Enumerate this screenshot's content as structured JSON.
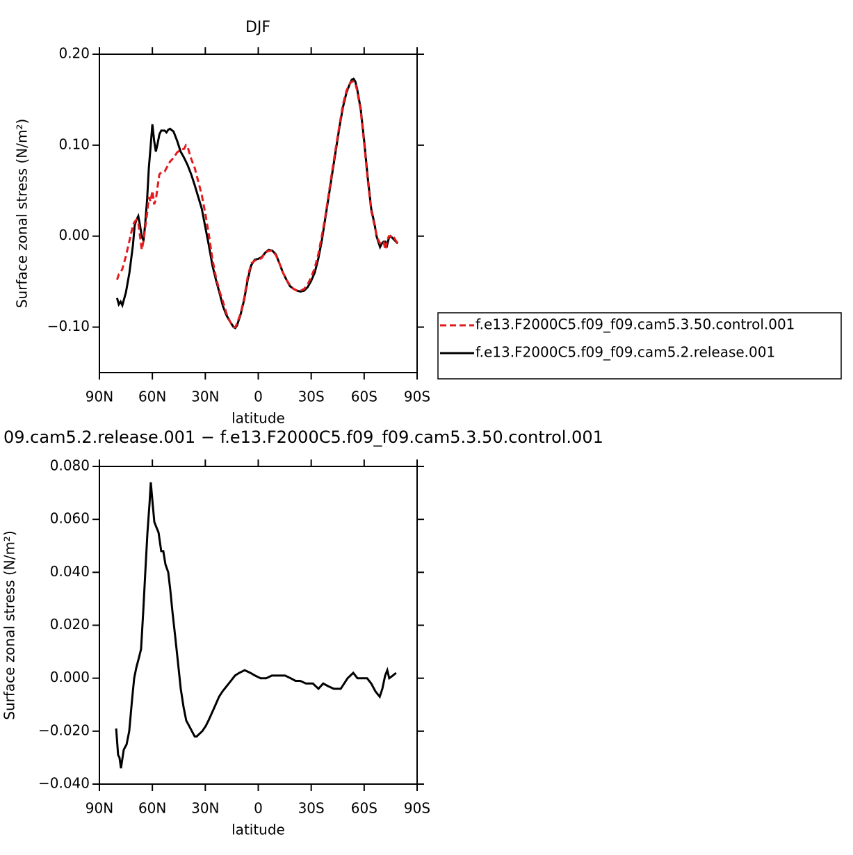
{
  "chart_data": [
    {
      "type": "line",
      "title": "DJF",
      "xlabel": "latitude",
      "ylabel": "Surface zonal stress (N/m²)",
      "xlim": [
        90,
        -90
      ],
      "xticks": [
        {
          "value": 90,
          "label": "90N"
        },
        {
          "value": 60,
          "label": "60N"
        },
        {
          "value": 30,
          "label": "30N"
        },
        0,
        {
          "value": -30,
          "label": "30S"
        },
        {
          "value": -60,
          "label": "60S"
        },
        {
          "value": -90,
          "label": "90S"
        }
      ],
      "ylim": [
        -0.15,
        0.2
      ],
      "yticks": [
        {
          "value": 0.2,
          "label": "0.20"
        },
        {
          "value": 0.1,
          "label": "0.10"
        },
        {
          "value": 0,
          "label": "0.00"
        },
        {
          "value": -0.1,
          "label": "−0.10"
        }
      ],
      "legend": "right",
      "x": [
        80,
        79,
        78,
        77,
        75,
        73,
        71,
        70,
        69,
        68,
        67,
        66,
        65,
        64,
        63,
        62,
        61,
        60,
        59,
        58,
        57,
        56,
        55,
        53,
        52,
        51,
        50,
        48,
        46,
        44,
        42,
        41,
        40,
        38,
        36,
        34,
        32,
        30,
        28,
        26,
        24,
        22,
        20,
        18,
        16,
        14,
        13,
        12,
        10,
        8,
        6,
        4,
        2,
        0,
        -2,
        -4,
        -6,
        -8,
        -10,
        -12,
        -14,
        -16,
        -18,
        -20,
        -22,
        -24,
        -26,
        -28,
        -30,
        -32,
        -34,
        -36,
        -38,
        -40,
        -42,
        -44,
        -46,
        -48,
        -50,
        -52,
        -53,
        -54,
        -55,
        -56,
        -58,
        -60,
        -62,
        -64,
        -66,
        -67,
        -68,
        -69,
        -70,
        -71,
        -72,
        -73,
        -74,
        -75,
        -76,
        -77,
        -78,
        -79
      ],
      "series": [
        {
          "name": "f.e13.F2000C5.f09_f09.cam5.3.50.control.001",
          "color": "#e41a1c",
          "line_style": "dashed",
          "values": [
            -0.048,
            -0.042,
            -0.04,
            -0.036,
            -0.022,
            -0.005,
            0.012,
            0.016,
            0.018,
            0.015,
            0.0,
            -0.015,
            -0.005,
            0.01,
            0.025,
            0.043,
            0.038,
            0.05,
            0.035,
            0.04,
            0.055,
            0.068,
            0.07,
            0.071,
            0.075,
            0.078,
            0.082,
            0.086,
            0.092,
            0.095,
            0.096,
            0.1,
            0.098,
            0.085,
            0.075,
            0.06,
            0.045,
            0.025,
            0.002,
            -0.025,
            -0.045,
            -0.06,
            -0.072,
            -0.085,
            -0.094,
            -0.1,
            -0.1,
            -0.096,
            -0.085,
            -0.068,
            -0.045,
            -0.03,
            -0.027,
            -0.026,
            -0.024,
            -0.018,
            -0.016,
            -0.016,
            -0.021,
            -0.03,
            -0.04,
            -0.048,
            -0.054,
            -0.058,
            -0.06,
            -0.06,
            -0.058,
            -0.053,
            -0.045,
            -0.035,
            -0.02,
            0.0,
            0.022,
            0.048,
            0.073,
            0.098,
            0.122,
            0.145,
            0.16,
            0.168,
            0.17,
            0.17,
            0.168,
            0.16,
            0.138,
            0.102,
            0.062,
            0.028,
            0.01,
            0.002,
            -0.004,
            -0.008,
            -0.006,
            -0.006,
            -0.015,
            -0.005,
            0.0,
            0.0,
            -0.003,
            -0.002,
            -0.005,
            -0.008
          ]
        },
        {
          "name": "f.e13.F2000C5.f09_f09.cam5.2.release.001",
          "color": "#000000",
          "line_style": "solid",
          "values": [
            -0.068,
            -0.075,
            -0.072,
            -0.076,
            -0.062,
            -0.04,
            -0.01,
            0.012,
            0.018,
            0.022,
            0.012,
            0.0,
            -0.005,
            0.015,
            0.04,
            0.075,
            0.098,
            0.123,
            0.105,
            0.093,
            0.102,
            0.112,
            0.116,
            0.116,
            0.114,
            0.117,
            0.118,
            0.115,
            0.105,
            0.093,
            0.086,
            0.082,
            0.078,
            0.068,
            0.056,
            0.043,
            0.03,
            0.01,
            -0.01,
            -0.032,
            -0.048,
            -0.062,
            -0.077,
            -0.087,
            -0.094,
            -0.1,
            -0.101,
            -0.098,
            -0.086,
            -0.07,
            -0.048,
            -0.032,
            -0.026,
            -0.025,
            -0.023,
            -0.018,
            -0.015,
            -0.016,
            -0.02,
            -0.03,
            -0.04,
            -0.048,
            -0.055,
            -0.058,
            -0.06,
            -0.061,
            -0.06,
            -0.056,
            -0.049,
            -0.04,
            -0.025,
            -0.005,
            0.02,
            0.045,
            0.07,
            0.095,
            0.12,
            0.142,
            0.158,
            0.168,
            0.172,
            0.173,
            0.17,
            0.162,
            0.14,
            0.105,
            0.065,
            0.03,
            0.012,
            0.0,
            -0.006,
            -0.012,
            -0.008,
            -0.006,
            -0.006,
            -0.01,
            -0.002,
            0.0,
            -0.002,
            -0.004,
            -0.006,
            -0.008
          ]
        }
      ]
    },
    {
      "type": "line",
      "title": "09.cam5.2.release.001 − f.e13.F2000C5.f09_f09.cam5.3.50.control.001",
      "xlabel": "latitude",
      "ylabel": "Surface zonal stress (N/m²)",
      "xlim": [
        90,
        -90
      ],
      "xticks": [
        {
          "value": 90,
          "label": "90N"
        },
        {
          "value": 60,
          "label": "60N"
        },
        {
          "value": 30,
          "label": "30N"
        },
        0,
        {
          "value": -30,
          "label": "30S"
        },
        {
          "value": -60,
          "label": "60S"
        },
        {
          "value": -90,
          "label": "90S"
        }
      ],
      "ylim": [
        -0.04,
        0.08
      ],
      "yticks": [
        {
          "value": 0.08,
          "label": "0.080"
        },
        {
          "value": 0.06,
          "label": "0.060"
        },
        {
          "value": 0.04,
          "label": "0.040"
        },
        {
          "value": 0.02,
          "label": "0.020"
        },
        {
          "value": 0,
          "label": "0.000"
        },
        {
          "value": -0.02,
          "label": "−0.020"
        },
        {
          "value": -0.04,
          "label": "−0.040"
        }
      ],
      "color": "#000000",
      "x": [
        80.5,
        79.4,
        78.6,
        77.8,
        76.2,
        74.6,
        73.1,
        71.5,
        70.3,
        69.1,
        67.5,
        66.4,
        65.2,
        64.0,
        62.8,
        61.6,
        60.9,
        60.1,
        58.9,
        57.7,
        56.5,
        55.0,
        53.8,
        52.6,
        51.0,
        49.8,
        48.6,
        47.1,
        45.5,
        43.9,
        42.3,
        40.8,
        39.2,
        37.6,
        36.0,
        34.9,
        33.3,
        31.7,
        29.7,
        28.2,
        26.2,
        24.2,
        22.2,
        20.3,
        17.9,
        15.5,
        13.2,
        10.8,
        7.7,
        4.5,
        1.8,
        -1.3,
        -4.5,
        -7.7,
        -11.2,
        -15.2,
        -18.3,
        -21.1,
        -23.8,
        -27.0,
        -30.9,
        -34.1,
        -36.8,
        -39.6,
        -42.8,
        -46.7,
        -50.6,
        -53.8,
        -56.2,
        -58.5,
        -61.7,
        -64.0,
        -66.4,
        -68.8,
        -70.3,
        -71.9,
        -73.1,
        -74.2,
        -76.2,
        -78.1
      ],
      "values": [
        -0.019,
        -0.029,
        -0.03,
        -0.034,
        -0.027,
        -0.025,
        -0.02,
        -0.008,
        0.0,
        0.004,
        0.008,
        0.011,
        0.025,
        0.04,
        0.055,
        0.066,
        0.074,
        0.068,
        0.059,
        0.057,
        0.055,
        0.048,
        0.048,
        0.043,
        0.04,
        0.033,
        0.025,
        0.016,
        0.006,
        -0.004,
        -0.011,
        -0.016,
        -0.018,
        -0.02,
        -0.022,
        -0.022,
        -0.021,
        -0.02,
        -0.018,
        -0.016,
        -0.013,
        -0.01,
        -0.007,
        -0.005,
        -0.003,
        -0.001,
        0.001,
        0.002,
        0.003,
        0.002,
        0.001,
        0.0,
        0.0,
        0.001,
        0.001,
        0.001,
        0.0,
        -0.001,
        -0.001,
        -0.002,
        -0.002,
        -0.004,
        -0.002,
        -0.003,
        -0.004,
        -0.004,
        0.0,
        0.002,
        0.0,
        0.0,
        0.0,
        -0.002,
        -0.005,
        -0.007,
        -0.004,
        0.001,
        0.003,
        0.0,
        0.001,
        0.002
      ]
    }
  ]
}
